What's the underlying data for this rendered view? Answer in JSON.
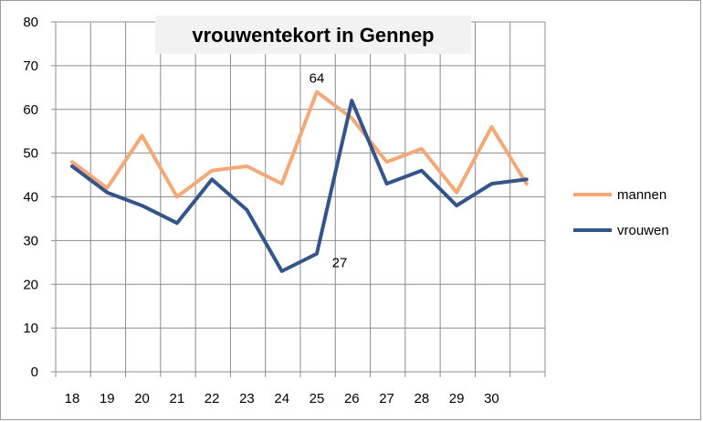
{
  "chart_data": {
    "type": "line",
    "title": "vrouwentekort in Gennep",
    "xlabel": "",
    "ylabel": "",
    "categories": [
      "18",
      "19",
      "20",
      "21",
      "22",
      "23",
      "24",
      "25",
      "26",
      "27",
      "28",
      "29",
      "30",
      ""
    ],
    "ylim": [
      0,
      80
    ],
    "yticks": [
      0,
      10,
      20,
      30,
      40,
      50,
      60,
      70,
      80
    ],
    "grid": true,
    "legend_position": "right",
    "series": [
      {
        "name": "mannen",
        "color": "#F4A878",
        "values": [
          48,
          42,
          54,
          40,
          46,
          47,
          43,
          64,
          58,
          48,
          51,
          41,
          56,
          43
        ]
      },
      {
        "name": "vrouwen",
        "color": "#34558B",
        "values": [
          47,
          41,
          38,
          34,
          44,
          37,
          23,
          27,
          62,
          43,
          46,
          38,
          43,
          44
        ]
      }
    ],
    "annotations": [
      {
        "series": 0,
        "index": 7,
        "text": "64"
      },
      {
        "series": 1,
        "index": 7,
        "text": "27"
      }
    ]
  }
}
